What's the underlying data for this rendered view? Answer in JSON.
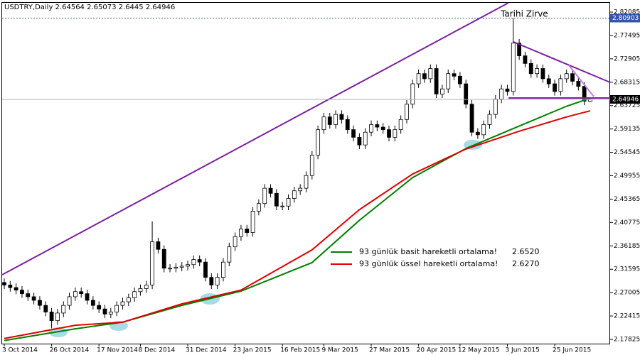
{
  "chart_data": {
    "type": "candlestick",
    "title": "USDTRY,Daily",
    "annotation": "Tarihi Zirve",
    "ylim": [
      2.1699,
      2.839
    ],
    "yticks": [
      2.17825,
      2.22415,
      2.27005,
      2.31595,
      2.36185,
      2.40775,
      2.45365,
      2.49955,
      2.54545,
      2.59135,
      2.63725,
      2.68315,
      2.72905,
      2.77495,
      2.82085
    ],
    "xticks": [
      {
        "value": 0,
        "label": "3 Oct 2014"
      },
      {
        "value": 8,
        "label": "26 Oct 2014"
      },
      {
        "value": 16,
        "label": "17 Nov 2014"
      },
      {
        "value": 23,
        "label": "8 Dec 2014"
      },
      {
        "value": 31,
        "label": "31 Dec 2014"
      },
      {
        "value": 39,
        "label": "23 Jan 2015"
      },
      {
        "value": 47,
        "label": "16 Feb 2015"
      },
      {
        "value": 54,
        "label": "9 Mar 2015"
      },
      {
        "value": 62,
        "label": "27 Mar 2015"
      },
      {
        "value": 70,
        "label": "20 Apr 2015"
      },
      {
        "value": 77,
        "label": "12 May 2015"
      },
      {
        "value": 85,
        "label": "3 Jun 2015"
      },
      {
        "value": 93,
        "label": "25 Jun 2015"
      }
    ],
    "open": [
      2.29,
      2.285,
      2.28,
      2.275,
      2.268,
      2.262,
      2.255,
      2.245,
      2.232,
      2.215,
      2.23,
      2.245,
      2.262,
      2.272,
      2.268,
      2.255,
      2.245,
      2.238,
      2.228,
      2.232,
      2.245,
      2.252,
      2.26,
      2.272,
      2.278,
      2.285,
      2.37,
      2.355,
      2.318,
      2.318,
      2.32,
      2.322,
      2.325,
      2.335,
      2.33,
      2.3,
      2.285,
      2.3,
      2.33,
      2.36,
      2.38,
      2.395,
      2.388,
      2.43,
      2.445,
      2.475,
      2.465,
      2.44,
      2.44,
      2.455,
      2.47,
      2.475,
      2.5,
      2.54,
      2.59,
      2.615,
      2.6,
      2.62,
      2.61,
      2.59,
      2.575,
      2.56,
      2.585,
      2.6,
      2.595,
      2.59,
      2.575,
      2.59,
      2.61,
      2.64,
      2.68,
      2.7,
      2.69,
      2.71,
      2.66,
      2.67,
      2.7,
      2.695,
      2.68,
      2.64,
      2.585,
      2.58,
      2.6,
      2.62,
      2.65,
      2.67,
      2.665,
      2.76,
      2.735,
      2.72,
      2.7,
      2.71,
      2.69,
      2.68,
      2.665,
      2.69,
      2.7,
      2.685,
      2.675,
      2.64564
    ],
    "high": [
      2.298,
      2.293,
      2.288,
      2.283,
      2.276,
      2.27,
      2.263,
      2.253,
      2.24,
      2.238,
      2.253,
      2.27,
      2.28,
      2.28,
      2.276,
      2.263,
      2.253,
      2.246,
      2.24,
      2.253,
      2.26,
      2.268,
      2.28,
      2.286,
      2.293,
      2.41,
      2.378,
      2.363,
      2.326,
      2.328,
      2.33,
      2.333,
      2.343,
      2.343,
      2.338,
      2.308,
      2.308,
      2.338,
      2.368,
      2.388,
      2.403,
      2.403,
      2.438,
      2.453,
      2.483,
      2.483,
      2.473,
      2.448,
      2.463,
      2.478,
      2.483,
      2.508,
      2.548,
      2.598,
      2.623,
      2.623,
      2.628,
      2.628,
      2.618,
      2.598,
      2.583,
      2.593,
      2.608,
      2.608,
      2.603,
      2.598,
      2.598,
      2.618,
      2.648,
      2.688,
      2.708,
      2.708,
      2.718,
      2.718,
      2.678,
      2.708,
      2.708,
      2.703,
      2.688,
      2.648,
      2.593,
      2.608,
      2.628,
      2.658,
      2.678,
      2.678,
      2.80903,
      2.768,
      2.743,
      2.728,
      2.718,
      2.718,
      2.698,
      2.688,
      2.698,
      2.708,
      2.708,
      2.693,
      2.683,
      2.65073
    ],
    "low": [
      2.277,
      2.272,
      2.267,
      2.26,
      2.254,
      2.247,
      2.237,
      2.224,
      2.2,
      2.207,
      2.222,
      2.237,
      2.254,
      2.26,
      2.247,
      2.237,
      2.23,
      2.22,
      2.22,
      2.224,
      2.237,
      2.244,
      2.252,
      2.264,
      2.27,
      2.277,
      2.347,
      2.31,
      2.31,
      2.31,
      2.312,
      2.314,
      2.317,
      2.322,
      2.292,
      2.277,
      2.277,
      2.292,
      2.322,
      2.352,
      2.372,
      2.38,
      2.38,
      2.422,
      2.437,
      2.457,
      2.432,
      2.432,
      2.432,
      2.447,
      2.462,
      2.467,
      2.492,
      2.532,
      2.582,
      2.592,
      2.592,
      2.602,
      2.582,
      2.567,
      2.552,
      2.552,
      2.577,
      2.587,
      2.582,
      2.567,
      2.567,
      2.582,
      2.602,
      2.632,
      2.672,
      2.682,
      2.682,
      2.652,
      2.652,
      2.662,
      2.687,
      2.672,
      2.632,
      2.577,
      2.572,
      2.572,
      2.592,
      2.612,
      2.642,
      2.657,
      2.657,
      2.727,
      2.712,
      2.692,
      2.692,
      2.682,
      2.672,
      2.657,
      2.657,
      2.682,
      2.677,
      2.667,
      2.638,
      2.6445
    ],
    "close": [
      2.285,
      2.28,
      2.275,
      2.268,
      2.262,
      2.255,
      2.245,
      2.232,
      2.215,
      2.23,
      2.245,
      2.262,
      2.272,
      2.268,
      2.255,
      2.245,
      2.238,
      2.228,
      2.232,
      2.245,
      2.252,
      2.26,
      2.272,
      2.278,
      2.285,
      2.37,
      2.355,
      2.318,
      2.318,
      2.32,
      2.322,
      2.325,
      2.335,
      2.33,
      2.3,
      2.285,
      2.3,
      2.33,
      2.36,
      2.38,
      2.395,
      2.388,
      2.43,
      2.445,
      2.475,
      2.465,
      2.44,
      2.44,
      2.455,
      2.47,
      2.475,
      2.5,
      2.54,
      2.59,
      2.615,
      2.6,
      2.62,
      2.61,
      2.59,
      2.575,
      2.56,
      2.585,
      2.6,
      2.595,
      2.59,
      2.575,
      2.59,
      2.61,
      2.64,
      2.68,
      2.7,
      2.69,
      2.71,
      2.66,
      2.67,
      2.7,
      2.695,
      2.68,
      2.64,
      2.585,
      2.58,
      2.6,
      2.62,
      2.65,
      2.67,
      2.665,
      2.76,
      2.735,
      2.72,
      2.7,
      2.71,
      2.69,
      2.68,
      2.665,
      2.69,
      2.7,
      2.685,
      2.675,
      2.646,
      2.64946
    ],
    "series": [
      {
        "name": "93 günlük basit hareketli ortalama!",
        "color": "#008000",
        "x": [
          0,
          12,
          20,
          30,
          40,
          52,
          60,
          69,
          78,
          87,
          95,
          99
        ],
        "values": [
          2.176,
          2.199,
          2.212,
          2.245,
          2.273,
          2.329,
          2.412,
          2.496,
          2.553,
          2.597,
          2.636,
          2.652
        ],
        "value_labels": [
          null,
          null,
          null,
          null,
          null,
          null,
          null,
          null,
          null,
          null,
          null,
          "2.6520"
        ]
      },
      {
        "name": "93 günlük üssel hareketli ortalama!",
        "color": "#e00000",
        "x": [
          0,
          12,
          20,
          30,
          40,
          52,
          60,
          69,
          78,
          87,
          95,
          99
        ],
        "values": [
          2.18,
          2.206,
          2.212,
          2.248,
          2.275,
          2.354,
          2.433,
          2.503,
          2.552,
          2.587,
          2.615,
          2.627
        ],
        "value_labels": [
          null,
          null,
          null,
          null,
          null,
          null,
          null,
          null,
          null,
          null,
          null,
          "2.6270"
        ]
      }
    ]
  }
}
